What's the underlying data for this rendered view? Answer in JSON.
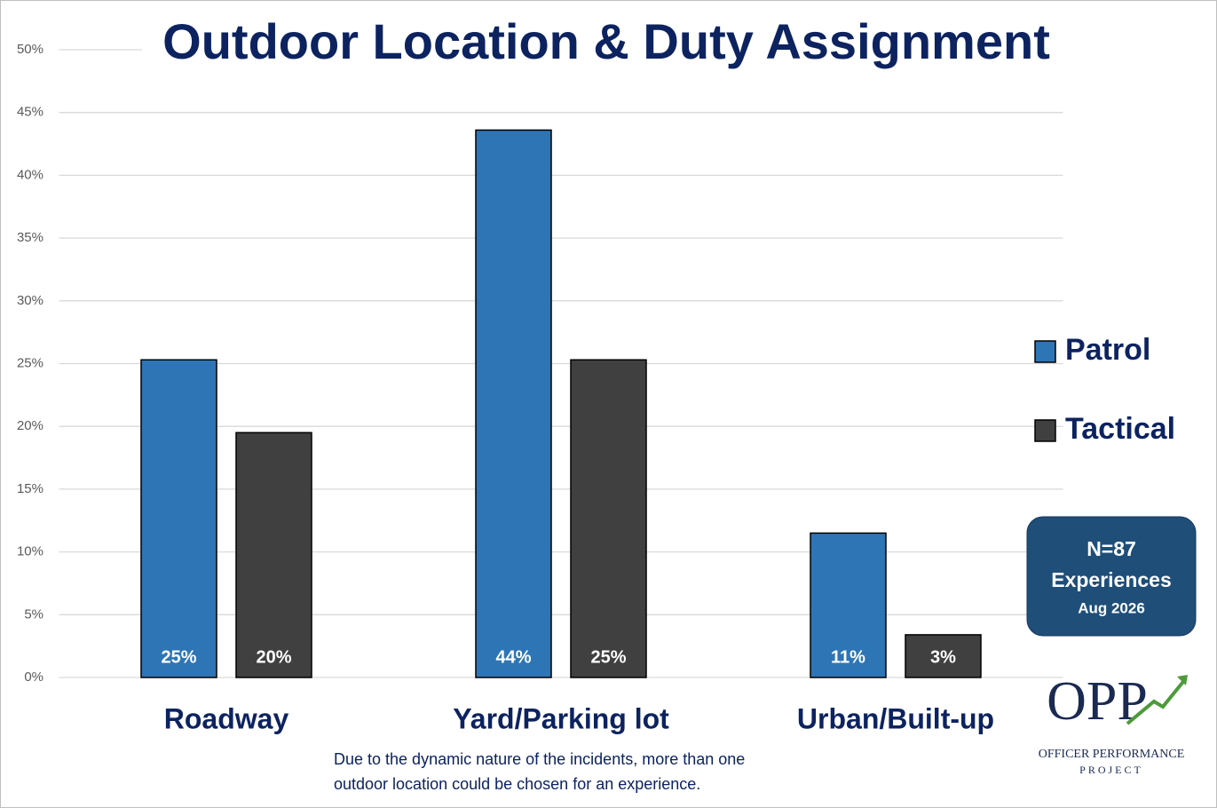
{
  "chart_data": {
    "type": "bar",
    "title": "Outdoor Location & Duty Assignment",
    "categories": [
      "Roadway",
      "Yard/Parking lot",
      "Urban/Built-up"
    ],
    "series": [
      {
        "name": "Patrol",
        "color": "#2e75b6",
        "values": [
          25.3,
          43.6,
          11.5
        ],
        "value_labels": [
          "25%",
          "44%",
          "11%"
        ]
      },
      {
        "name": "Tactical",
        "color": "#404040",
        "values": [
          19.5,
          25.3,
          3.4
        ],
        "value_labels": [
          "20%",
          "25%",
          "3%"
        ]
      }
    ],
    "ylim": [
      0,
      50
    ],
    "yticks": [
      {
        "value": 0,
        "label": "0%"
      },
      {
        "value": 5,
        "label": "5%"
      },
      {
        "value": 10,
        "label": "10%"
      },
      {
        "value": 15,
        "label": "15%"
      },
      {
        "value": 20,
        "label": "20%"
      },
      {
        "value": 25,
        "label": "25%"
      },
      {
        "value": 30,
        "label": "30%"
      },
      {
        "value": 35,
        "label": "35%"
      },
      {
        "value": 40,
        "label": "40%"
      },
      {
        "value": 45,
        "label": "45%"
      },
      {
        "value": 50,
        "label": "50%"
      }
    ],
    "grid": true,
    "legend": "right",
    "annotations": [
      "N=87",
      "Experiences",
      "Aug 2026"
    ],
    "note": [
      "Due to the dynamic nature of the incidents, more than one",
      "outdoor location could be chosen for an experience."
    ],
    "logo": {
      "mark": "OPP",
      "name": [
        "OFFICER PERFORMANCE",
        "PROJECT"
      ]
    }
  }
}
